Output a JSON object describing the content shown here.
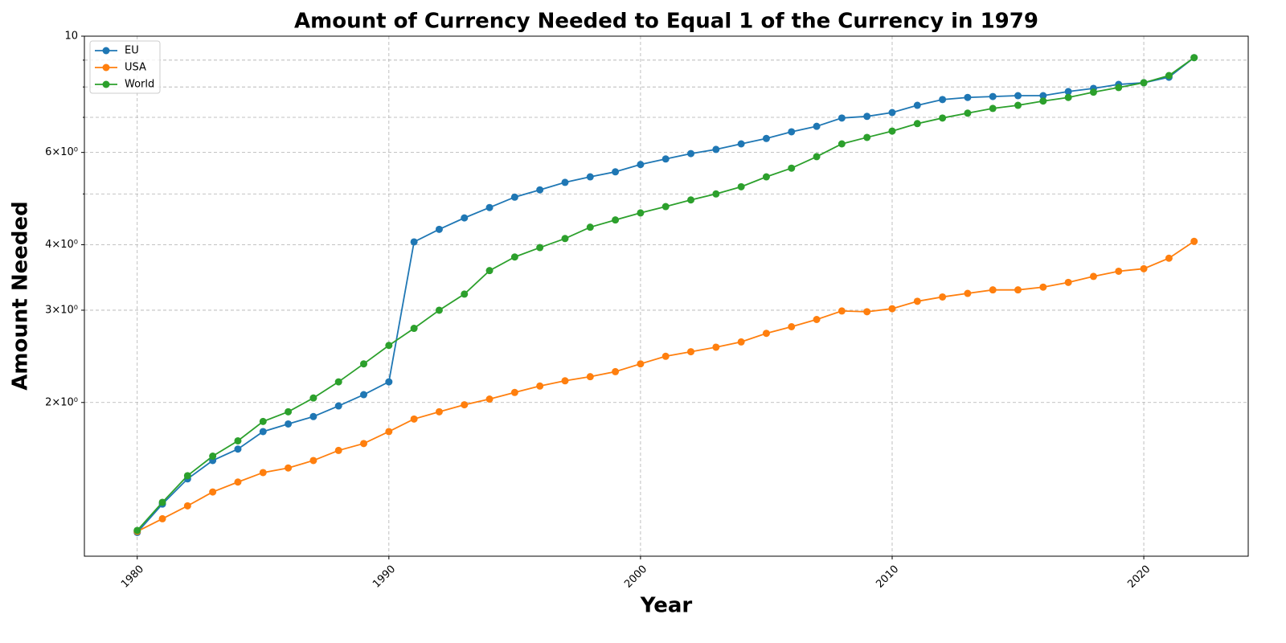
{
  "chart_data": {
    "type": "line",
    "title": "Amount of Currency Needed to Equal 1 of the Currency in 1979",
    "x_label": "Year",
    "y_label": "Amount Needed",
    "x": [
      1980,
      1981,
      1982,
      1983,
      1984,
      1985,
      1986,
      1987,
      1988,
      1989,
      1990,
      1991,
      1992,
      1993,
      1994,
      1995,
      1996,
      1997,
      1998,
      1999,
      2000,
      2001,
      2002,
      2003,
      2004,
      2005,
      2006,
      2007,
      2008,
      2009,
      2010,
      2011,
      2012,
      2013,
      2014,
      2015,
      2016,
      2017,
      2018,
      2019,
      2020,
      2021,
      2022
    ],
    "series": [
      {
        "name": "EU",
        "color": "#1f77b4",
        "values": [
          1.13,
          1.28,
          1.43,
          1.55,
          1.63,
          1.76,
          1.82,
          1.88,
          1.97,
          2.07,
          2.19,
          4.05,
          4.28,
          4.5,
          4.71,
          4.93,
          5.09,
          5.26,
          5.39,
          5.51,
          5.69,
          5.83,
          5.97,
          6.08,
          6.23,
          6.38,
          6.57,
          6.73,
          6.98,
          7.03,
          7.15,
          7.38,
          7.57,
          7.64,
          7.67,
          7.7,
          7.7,
          7.84,
          7.95,
          8.09,
          8.15,
          8.35,
          9.1
        ]
      },
      {
        "name": "USA",
        "color": "#ff7f0e",
        "values": [
          1.135,
          1.2,
          1.27,
          1.35,
          1.41,
          1.47,
          1.5,
          1.55,
          1.62,
          1.67,
          1.76,
          1.86,
          1.92,
          1.98,
          2.03,
          2.09,
          2.15,
          2.2,
          2.24,
          2.29,
          2.37,
          2.45,
          2.5,
          2.55,
          2.61,
          2.71,
          2.79,
          2.88,
          2.99,
          2.98,
          3.02,
          3.12,
          3.18,
          3.23,
          3.28,
          3.28,
          3.32,
          3.39,
          3.48,
          3.56,
          3.6,
          3.77,
          4.06
        ]
      },
      {
        "name": "World",
        "color": "#2ca02c",
        "values": [
          1.14,
          1.29,
          1.45,
          1.58,
          1.69,
          1.84,
          1.92,
          2.04,
          2.19,
          2.37,
          2.57,
          2.77,
          3.0,
          3.22,
          3.57,
          3.79,
          3.95,
          4.11,
          4.32,
          4.46,
          4.6,
          4.73,
          4.87,
          5.0,
          5.16,
          5.39,
          5.6,
          5.89,
          6.23,
          6.41,
          6.59,
          6.81,
          6.98,
          7.13,
          7.28,
          7.38,
          7.52,
          7.64,
          7.82,
          7.98,
          8.15,
          8.41,
          9.1
        ]
      }
    ],
    "xlim": [
      1977.9,
      2024.15
    ],
    "xticks": [
      1980,
      1990,
      2000,
      2010,
      2020
    ],
    "ylim": [
      1.018,
      10
    ],
    "y_log": true,
    "yticks": [
      {
        "value": 2,
        "label": "2×10⁰"
      },
      {
        "value": 3,
        "label": "3×10⁰"
      },
      {
        "value": 4,
        "label": "4×10⁰"
      },
      {
        "value": 6,
        "label": "6×10⁰"
      },
      10
    ],
    "yminorticks": [
      5,
      7,
      8,
      9
    ],
    "grid": true,
    "legend": "upper left"
  }
}
